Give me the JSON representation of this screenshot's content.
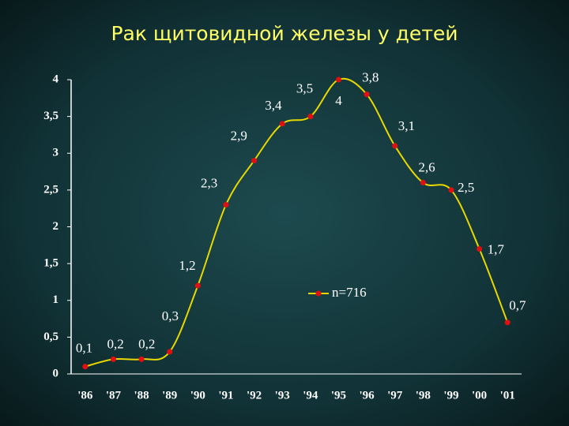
{
  "chart_data": {
    "type": "line",
    "title": "Рак щитовидной железы у детей",
    "categories": [
      "'86",
      "'87",
      "'88",
      "'89",
      "'90",
      "'91",
      "'92",
      "'93",
      "'94",
      "'95",
      "'96",
      "'97",
      "'98",
      "'99",
      "'00",
      "'01"
    ],
    "series": [
      {
        "name": "n=716",
        "color": "#e8d800",
        "marker_color": "#e01010",
        "values": [
          0.1,
          0.2,
          0.2,
          0.3,
          1.2,
          2.3,
          2.9,
          3.4,
          3.5,
          4,
          3.8,
          3.1,
          2.6,
          2.5,
          1.7,
          0.7
        ],
        "value_labels": [
          "0,1",
          "0,2",
          "0,2",
          "0,3",
          "1,2",
          "2,3",
          "2,9",
          "3,4",
          "3,5",
          "4",
          "3,8",
          "3,1",
          "2,6",
          "2,5",
          "1,7",
          "0,7"
        ]
      }
    ],
    "ylim": [
      0,
      4
    ],
    "yticks": [
      0,
      {
        "value": 0.5,
        "label": "0,5"
      },
      1,
      {
        "value": 1.5,
        "label": "1,5"
      },
      2,
      {
        "value": 2.5,
        "label": "2,5"
      },
      3,
      {
        "value": 3.5,
        "label": "3,5"
      },
      4
    ],
    "grid": false,
    "smooth": true
  }
}
